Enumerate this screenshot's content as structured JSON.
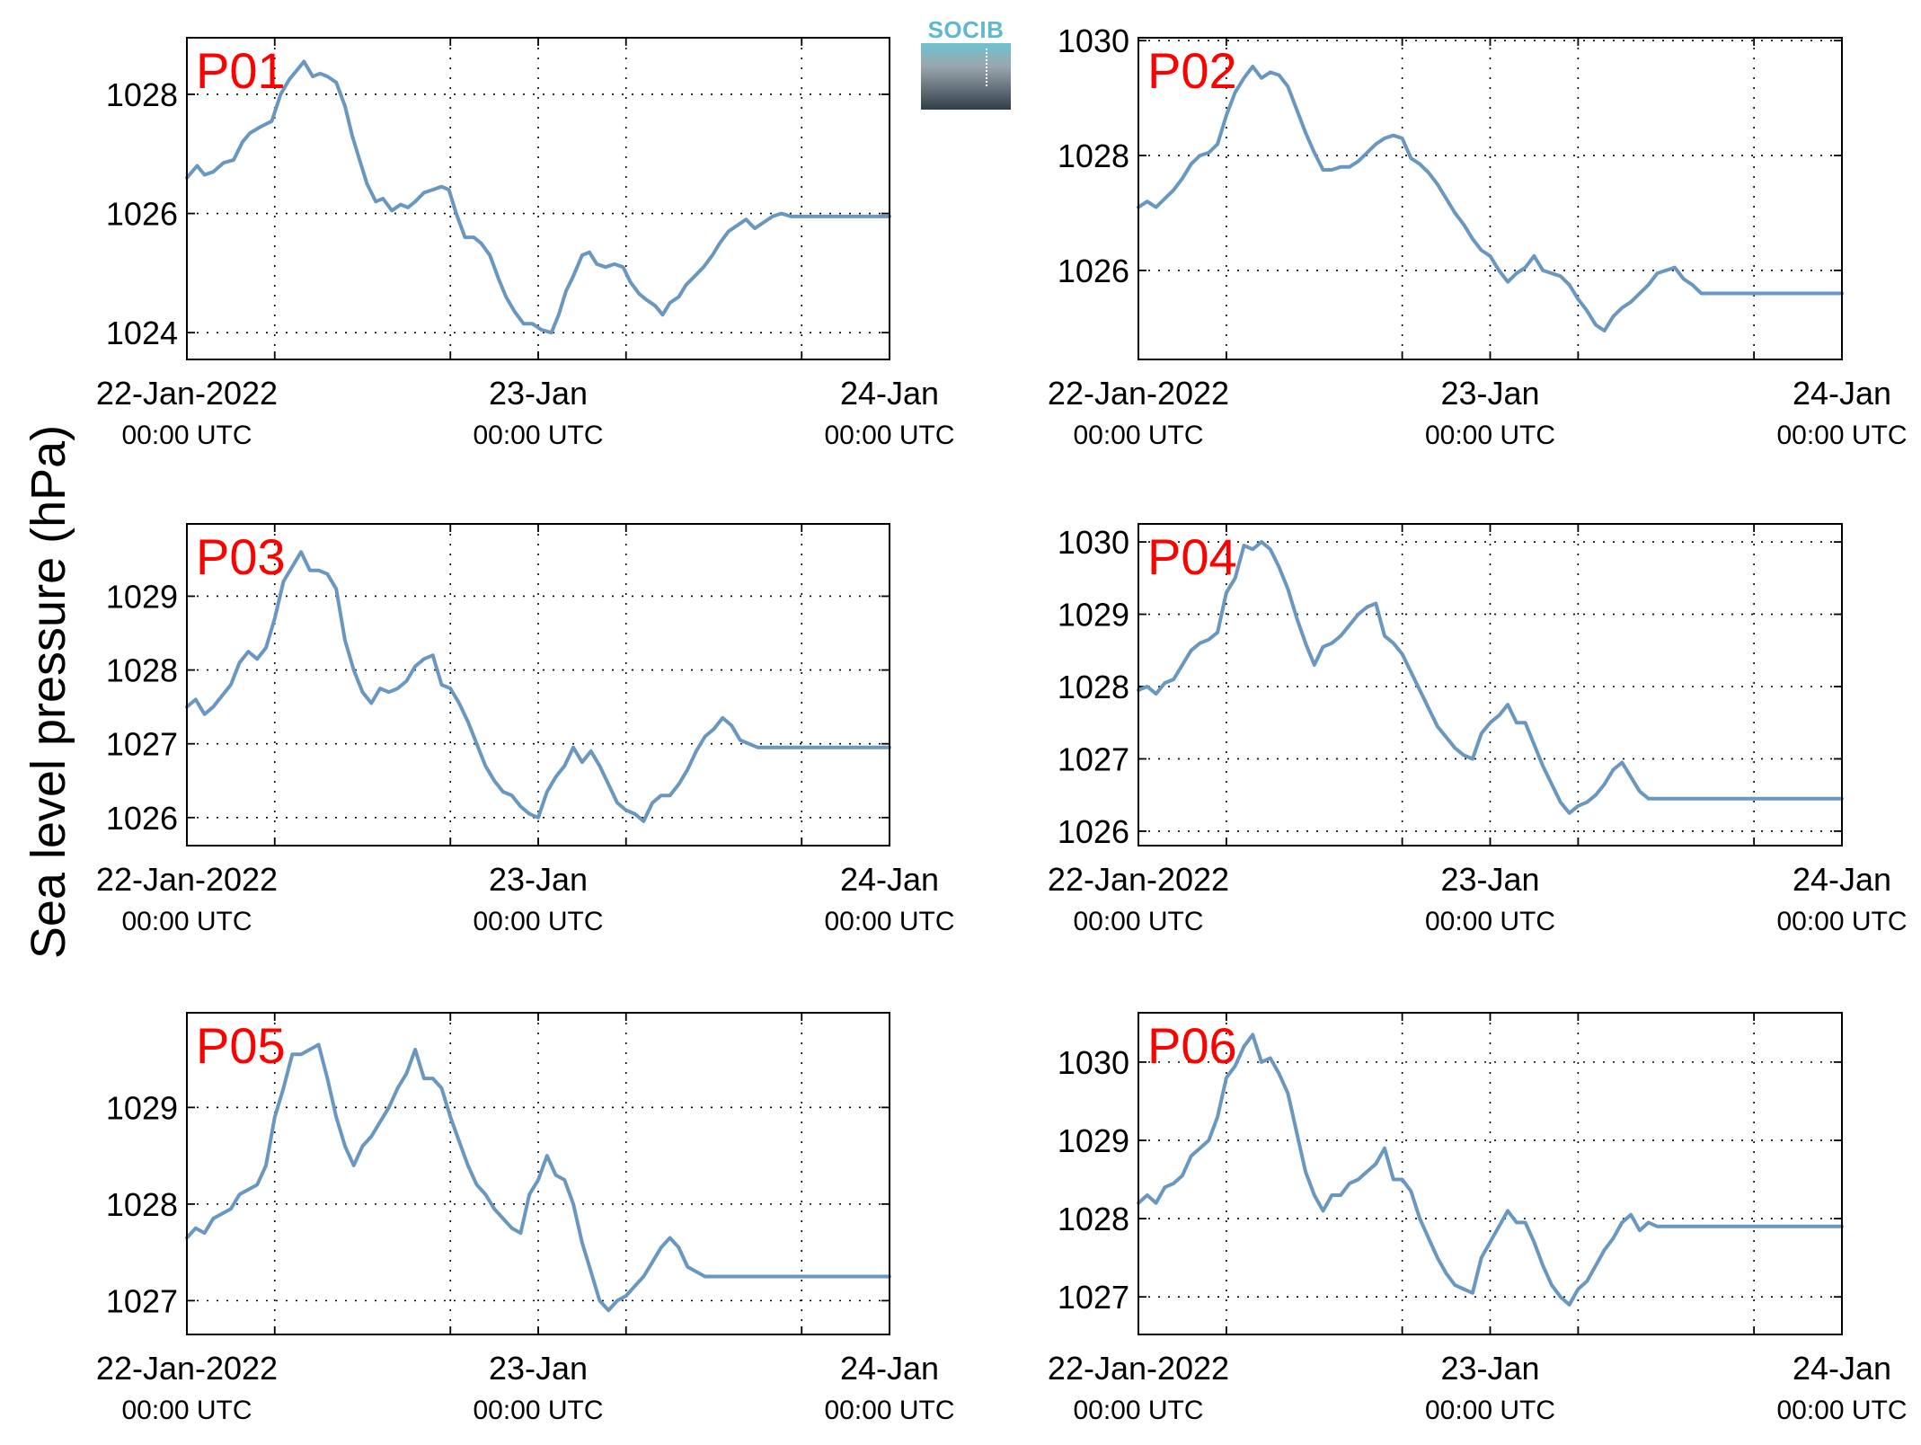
{
  "figure": {
    "ylabel": "Sea level pressure (hPa)",
    "logo_text": "SOCIB",
    "line_color": "#6a97bf",
    "label_color": "#ff0000"
  },
  "chart_data": [
    {
      "type": "line",
      "panel": "P01",
      "xlim": [
        0,
        48
      ],
      "ylim": [
        1023.55,
        1028.95
      ],
      "yticks": [
        1024,
        1026,
        1028
      ],
      "x_ticks": [
        {
          "x": 0,
          "label": "22-Jan-2022",
          "sub": "00:00 UTC"
        },
        {
          "x": 24,
          "label": "23-Jan",
          "sub": "00:00 UTC"
        },
        {
          "x": 48,
          "label": "24-Jan",
          "sub": "00:00 UTC"
        }
      ],
      "x": [
        0,
        0.7,
        1.2,
        1.8,
        2.5,
        3.2,
        3.8,
        4.3,
        5,
        5.8,
        6.4,
        7,
        7.5,
        8,
        8.6,
        9.1,
        9.6,
        10.2,
        10.8,
        11.3,
        11.8,
        12.3,
        12.9,
        13.4,
        14,
        14.6,
        15.1,
        15.6,
        16.2,
        16.8,
        17.4,
        17.9,
        18.4,
        19,
        19.6,
        20.1,
        20.7,
        21.3,
        21.8,
        22.4,
        23,
        23.6,
        24.2,
        24.9,
        25.4,
        25.9,
        26.4,
        27,
        27.5,
        28,
        28.6,
        29.2,
        29.8,
        30.3,
        30.9,
        31.4,
        32,
        32.5,
        33,
        33.6,
        34.1,
        34.7,
        35.3,
        35.9,
        36.4,
        37,
        37.6,
        38.2,
        38.8,
        39.4,
        40,
        40.6,
        41.3,
        41.9,
        42.5,
        43.1,
        43.7,
        44.2,
        44.8,
        45.4,
        45.9,
        46.4,
        47,
        47.6,
        48
      ],
      "y": [
        1026.6,
        1026.8,
        1026.65,
        1026.7,
        1026.85,
        1026.9,
        1027.2,
        1027.35,
        1027.45,
        1027.55,
        1028.0,
        1028.25,
        1028.4,
        1028.55,
        1028.3,
        1028.35,
        1028.3,
        1028.2,
        1027.8,
        1027.3,
        1026.9,
        1026.5,
        1026.2,
        1026.25,
        1026.05,
        1026.15,
        1026.1,
        1026.2,
        1026.35,
        1026.4,
        1026.45,
        1026.4,
        1026.0,
        1025.6,
        1025.6,
        1025.5,
        1025.3,
        1024.9,
        1024.6,
        1024.35,
        1024.15,
        1024.15,
        1024.05,
        1024.0,
        1024.3,
        1024.7,
        1024.95,
        1025.3,
        1025.35,
        1025.15,
        1025.1,
        1025.15,
        1025.1,
        1024.85,
        1024.65,
        1024.55,
        1024.45,
        1024.3,
        1024.5,
        1024.6,
        1024.8,
        1024.95,
        1025.1,
        1025.3,
        1025.5,
        1025.7,
        1025.8,
        1025.9,
        1025.75,
        1025.85,
        1025.95,
        1026.0,
        1025.95,
        1025.95,
        1025.95,
        1025.95,
        1025.95,
        1025.95,
        1025.95,
        1025.95,
        1025.95,
        1025.95,
        1025.95,
        1025.95,
        1025.95
      ]
    },
    {
      "type": "line",
      "panel": "P02",
      "xlim": [
        0,
        48
      ],
      "ylim": [
        1024.45,
        1030.05
      ],
      "yticks": [
        1026,
        1028,
        1030
      ],
      "x_ticks": [
        {
          "x": 0,
          "label": "22-Jan-2022",
          "sub": "00:00 UTC"
        },
        {
          "x": 24,
          "label": "23-Jan",
          "sub": "00:00 UTC"
        },
        {
          "x": 48,
          "label": "24-Jan",
          "sub": "00:00 UTC"
        }
      ],
      "x": [
        0,
        0.6,
        1.2,
        1.8,
        2.4,
        3,
        3.6,
        4.2,
        4.8,
        5.4,
        6,
        6.6,
        7.2,
        7.8,
        8.4,
        9,
        9.6,
        10.2,
        10.8,
        11.4,
        12,
        12.6,
        13.2,
        13.8,
        14.4,
        15,
        15.6,
        16.2,
        16.8,
        17.4,
        18,
        18.6,
        19.2,
        19.8,
        20.4,
        21,
        21.6,
        22.2,
        22.8,
        23.4,
        24,
        24.6,
        25.2,
        25.8,
        26.4,
        27,
        27.6,
        28.2,
        28.8,
        29.4,
        30,
        30.6,
        31.2,
        31.8,
        32.4,
        33,
        33.6,
        34.2,
        34.8,
        35.4,
        36,
        36.6,
        37.2,
        37.8,
        38.4,
        39,
        39.6,
        40.2,
        40.8,
        41.4,
        42,
        42.6,
        43.2,
        43.8,
        44.4,
        45,
        45.6,
        46.2,
        46.8,
        47.4,
        48
      ],
      "y": [
        1027.1,
        1027.2,
        1027.1,
        1027.25,
        1027.4,
        1027.6,
        1027.85,
        1028.0,
        1028.05,
        1028.2,
        1028.7,
        1029.1,
        1029.35,
        1029.55,
        1029.35,
        1029.45,
        1029.4,
        1029.2,
        1028.8,
        1028.4,
        1028.05,
        1027.75,
        1027.75,
        1027.8,
        1027.8,
        1027.9,
        1028.05,
        1028.2,
        1028.3,
        1028.35,
        1028.3,
        1027.95,
        1027.85,
        1027.7,
        1027.5,
        1027.25,
        1027.0,
        1026.8,
        1026.55,
        1026.35,
        1026.25,
        1026.0,
        1025.8,
        1025.95,
        1026.05,
        1026.25,
        1026.0,
        1025.95,
        1025.9,
        1025.75,
        1025.5,
        1025.3,
        1025.05,
        1024.95,
        1025.2,
        1025.35,
        1025.45,
        1025.6,
        1025.75,
        1025.95,
        1026.0,
        1026.05,
        1025.85,
        1025.75,
        1025.6,
        1025.6,
        1025.6,
        1025.6,
        1025.6,
        1025.6,
        1025.6,
        1025.6,
        1025.6,
        1025.6,
        1025.6,
        1025.6,
        1025.6,
        1025.6,
        1025.6,
        1025.6,
        1025.6
      ]
    },
    {
      "type": "line",
      "panel": "P03",
      "xlim": [
        0,
        48
      ],
      "ylim": [
        1025.62,
        1029.98
      ],
      "yticks": [
        1026,
        1027,
        1028,
        1029
      ],
      "x_ticks": [
        {
          "x": 0,
          "label": "22-Jan-2022",
          "sub": "00:00 UTC"
        },
        {
          "x": 24,
          "label": "23-Jan",
          "sub": "00:00 UTC"
        },
        {
          "x": 48,
          "label": "24-Jan",
          "sub": "00:00 UTC"
        }
      ],
      "x": [
        0,
        0.6,
        1.2,
        1.8,
        2.4,
        3,
        3.6,
        4.2,
        4.8,
        5.4,
        6,
        6.6,
        7.2,
        7.8,
        8.4,
        9,
        9.6,
        10.2,
        10.8,
        11.4,
        12,
        12.6,
        13.2,
        13.8,
        14.4,
        15,
        15.6,
        16.2,
        16.8,
        17.4,
        18,
        18.6,
        19.2,
        19.8,
        20.4,
        21,
        21.6,
        22.2,
        22.8,
        23.4,
        24,
        24.6,
        25.2,
        25.8,
        26.4,
        27,
        27.6,
        28.2,
        28.8,
        29.4,
        30,
        30.6,
        31.2,
        31.8,
        32.4,
        33,
        33.6,
        34.2,
        34.8,
        35.4,
        36,
        36.6,
        37.2,
        37.8,
        38.4,
        39,
        39.6,
        40.2,
        40.8,
        41.4,
        42,
        42.6,
        43.2,
        43.8,
        44.4,
        45,
        45.6,
        46.2,
        46.8,
        47.4,
        48
      ],
      "y": [
        1027.5,
        1027.6,
        1027.4,
        1027.5,
        1027.65,
        1027.8,
        1028.1,
        1028.25,
        1028.15,
        1028.3,
        1028.7,
        1029.2,
        1029.4,
        1029.6,
        1029.35,
        1029.35,
        1029.3,
        1029.1,
        1028.4,
        1028.0,
        1027.7,
        1027.55,
        1027.75,
        1027.7,
        1027.75,
        1027.85,
        1028.05,
        1028.15,
        1028.2,
        1027.8,
        1027.75,
        1027.55,
        1027.3,
        1027.0,
        1026.7,
        1026.5,
        1026.35,
        1026.3,
        1026.15,
        1026.05,
        1026.0,
        1026.35,
        1026.55,
        1026.7,
        1026.95,
        1026.75,
        1026.9,
        1026.7,
        1026.45,
        1026.2,
        1026.1,
        1026.05,
        1025.95,
        1026.2,
        1026.3,
        1026.3,
        1026.45,
        1026.65,
        1026.9,
        1027.1,
        1027.2,
        1027.35,
        1027.25,
        1027.05,
        1027.0,
        1026.95,
        1026.95,
        1026.95,
        1026.95,
        1026.95,
        1026.95,
        1026.95,
        1026.95,
        1026.95,
        1026.95,
        1026.95,
        1026.95,
        1026.95,
        1026.95,
        1026.95,
        1026.95
      ]
    },
    {
      "type": "line",
      "panel": "P04",
      "xlim": [
        0,
        48
      ],
      "ylim": [
        1025.8,
        1030.25
      ],
      "yticks": [
        1026,
        1027,
        1028,
        1029,
        1030
      ],
      "x_ticks": [
        {
          "x": 0,
          "label": "22-Jan-2022",
          "sub": "00:00 UTC"
        },
        {
          "x": 24,
          "label": "23-Jan",
          "sub": "00:00 UTC"
        },
        {
          "x": 48,
          "label": "24-Jan",
          "sub": "00:00 UTC"
        }
      ],
      "x": [
        0,
        0.6,
        1.2,
        1.8,
        2.4,
        3,
        3.6,
        4.2,
        4.8,
        5.4,
        6,
        6.6,
        7.2,
        7.8,
        8.4,
        9,
        9.6,
        10.2,
        10.8,
        11.4,
        12,
        12.6,
        13.2,
        13.8,
        14.4,
        15,
        15.6,
        16.2,
        16.8,
        17.4,
        18,
        18.6,
        19.2,
        19.8,
        20.4,
        21,
        21.6,
        22.2,
        22.8,
        23.4,
        24,
        24.6,
        25.2,
        25.8,
        26.4,
        27,
        27.6,
        28.2,
        28.8,
        29.4,
        30,
        30.6,
        31.2,
        31.8,
        32.4,
        33,
        33.6,
        34.2,
        34.8,
        35.4,
        36,
        36.6,
        37.2,
        37.8,
        38.4,
        39,
        39.6,
        40.2,
        40.8,
        41.4,
        42,
        42.6,
        43.2,
        43.8,
        44.4,
        45,
        45.6,
        46.2,
        46.8,
        47.4,
        48
      ],
      "y": [
        1027.95,
        1028.0,
        1027.9,
        1028.05,
        1028.1,
        1028.3,
        1028.5,
        1028.6,
        1028.65,
        1028.75,
        1029.3,
        1029.5,
        1029.95,
        1029.9,
        1030.0,
        1029.9,
        1029.65,
        1029.35,
        1028.95,
        1028.6,
        1028.3,
        1028.55,
        1028.6,
        1028.7,
        1028.85,
        1029.0,
        1029.1,
        1029.15,
        1028.7,
        1028.6,
        1028.45,
        1028.2,
        1027.95,
        1027.7,
        1027.45,
        1027.3,
        1027.15,
        1027.05,
        1027.0,
        1027.35,
        1027.5,
        1027.6,
        1027.75,
        1027.5,
        1027.5,
        1027.2,
        1026.9,
        1026.65,
        1026.4,
        1026.25,
        1026.35,
        1026.4,
        1026.5,
        1026.65,
        1026.85,
        1026.95,
        1026.75,
        1026.55,
        1026.45,
        1026.45,
        1026.45,
        1026.45,
        1026.45,
        1026.45,
        1026.45,
        1026.45,
        1026.45,
        1026.45,
        1026.45,
        1026.45,
        1026.45,
        1026.45,
        1026.45,
        1026.45,
        1026.45,
        1026.45,
        1026.45,
        1026.45,
        1026.45,
        1026.45,
        1026.45
      ]
    },
    {
      "type": "line",
      "panel": "P05",
      "xlim": [
        0,
        48
      ],
      "ylim": [
        1026.65,
        1029.98
      ],
      "yticks": [
        1027,
        1028,
        1029
      ],
      "x_ticks": [
        {
          "x": 0,
          "label": "22-Jan-2022",
          "sub": "00:00 UTC"
        },
        {
          "x": 24,
          "label": "23-Jan",
          "sub": "00:00 UTC"
        },
        {
          "x": 48,
          "label": "24-Jan",
          "sub": "00:00 UTC"
        }
      ],
      "x": [
        0,
        0.6,
        1.2,
        1.8,
        2.4,
        3,
        3.6,
        4.2,
        4.8,
        5.4,
        6,
        6.6,
        7.2,
        7.8,
        8.4,
        9,
        9.6,
        10.2,
        10.8,
        11.4,
        12,
        12.6,
        13.2,
        13.8,
        14.4,
        15,
        15.6,
        16.2,
        16.8,
        17.4,
        18,
        18.6,
        19.2,
        19.8,
        20.4,
        21,
        21.6,
        22.2,
        22.8,
        23.4,
        24,
        24.6,
        25.2,
        25.8,
        26.4,
        27,
        27.6,
        28.2,
        28.8,
        29.4,
        30,
        30.6,
        31.2,
        31.8,
        32.4,
        33,
        33.6,
        34.2,
        34.8,
        35.4,
        36,
        36.6,
        37.2,
        37.8,
        38.4,
        39,
        39.6,
        40.2,
        40.8,
        41.4,
        42,
        42.6,
        43.2,
        43.8,
        44.4,
        45,
        45.6,
        46.2,
        46.8,
        47.4,
        48
      ],
      "y": [
        1027.65,
        1027.75,
        1027.7,
        1027.85,
        1027.9,
        1027.95,
        1028.1,
        1028.15,
        1028.2,
        1028.4,
        1028.9,
        1029.2,
        1029.55,
        1029.55,
        1029.6,
        1029.65,
        1029.3,
        1028.9,
        1028.6,
        1028.4,
        1028.6,
        1028.7,
        1028.85,
        1029.0,
        1029.2,
        1029.35,
        1029.6,
        1029.3,
        1029.3,
        1029.2,
        1028.9,
        1028.65,
        1028.4,
        1028.2,
        1028.1,
        1027.95,
        1027.85,
        1027.75,
        1027.7,
        1028.1,
        1028.25,
        1028.5,
        1028.3,
        1028.25,
        1028.0,
        1027.6,
        1027.3,
        1027.0,
        1026.9,
        1027.0,
        1027.05,
        1027.15,
        1027.25,
        1027.4,
        1027.55,
        1027.65,
        1027.55,
        1027.35,
        1027.3,
        1027.25,
        1027.25,
        1027.25,
        1027.25,
        1027.25,
        1027.25,
        1027.25,
        1027.25,
        1027.25,
        1027.25,
        1027.25,
        1027.25,
        1027.25,
        1027.25,
        1027.25,
        1027.25,
        1027.25,
        1027.25,
        1027.25,
        1027.25,
        1027.25,
        1027.25
      ]
    },
    {
      "type": "line",
      "panel": "P06",
      "xlim": [
        0,
        48
      ],
      "ylim": [
        1026.52,
        1030.63
      ],
      "yticks": [
        1027,
        1028,
        1029,
        1030
      ],
      "x_ticks": [
        {
          "x": 0,
          "label": "22-Jan-2022",
          "sub": "00:00 UTC"
        },
        {
          "x": 24,
          "label": "23-Jan",
          "sub": "00:00 UTC"
        },
        {
          "x": 48,
          "label": "24-Jan",
          "sub": "00:00 UTC"
        }
      ],
      "x": [
        0,
        0.6,
        1.2,
        1.8,
        2.4,
        3,
        3.6,
        4.2,
        4.8,
        5.4,
        6,
        6.6,
        7.2,
        7.8,
        8.4,
        9,
        9.6,
        10.2,
        10.8,
        11.4,
        12,
        12.6,
        13.2,
        13.8,
        14.4,
        15,
        15.6,
        16.2,
        16.8,
        17.4,
        18,
        18.6,
        19.2,
        19.8,
        20.4,
        21,
        21.6,
        22.2,
        22.8,
        23.4,
        24,
        24.6,
        25.2,
        25.8,
        26.4,
        27,
        27.6,
        28.2,
        28.8,
        29.4,
        30,
        30.6,
        31.2,
        31.8,
        32.4,
        33,
        33.6,
        34.2,
        34.8,
        35.4,
        36,
        36.6,
        37.2,
        37.8,
        38.4,
        39,
        39.6,
        40.2,
        40.8,
        41.4,
        42,
        42.6,
        43.2,
        43.8,
        44.4,
        45,
        45.6,
        46.2,
        46.8,
        47.4,
        48
      ],
      "y": [
        1028.2,
        1028.3,
        1028.2,
        1028.4,
        1028.45,
        1028.55,
        1028.8,
        1028.9,
        1029.0,
        1029.3,
        1029.8,
        1029.95,
        1030.2,
        1030.35,
        1030.0,
        1030.05,
        1029.85,
        1029.6,
        1029.1,
        1028.6,
        1028.3,
        1028.1,
        1028.3,
        1028.3,
        1028.45,
        1028.5,
        1028.6,
        1028.7,
        1028.9,
        1028.5,
        1028.5,
        1028.35,
        1028.0,
        1027.75,
        1027.5,
        1027.3,
        1027.15,
        1027.1,
        1027.05,
        1027.5,
        1027.7,
        1027.9,
        1028.1,
        1027.95,
        1027.95,
        1027.7,
        1027.4,
        1027.15,
        1027.0,
        1026.9,
        1027.1,
        1027.2,
        1027.4,
        1027.6,
        1027.75,
        1027.95,
        1028.05,
        1027.85,
        1027.95,
        1027.9,
        1027.9,
        1027.9,
        1027.9,
        1027.9,
        1027.9,
        1027.9,
        1027.9,
        1027.9,
        1027.9,
        1027.9,
        1027.9,
        1027.9,
        1027.9,
        1027.9,
        1027.9,
        1027.9,
        1027.9,
        1027.9,
        1027.9,
        1027.9,
        1027.9
      ]
    }
  ]
}
